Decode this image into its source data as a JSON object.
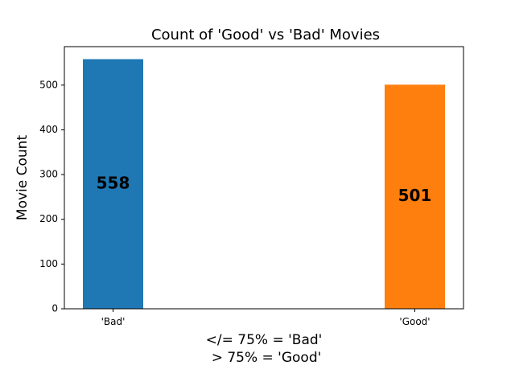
{
  "chart_data": {
    "type": "bar",
    "title": "Count of 'Good' vs 'Bad' Movies",
    "xlabel_lines": [
      "</= 75% = 'Bad'",
      "> 75% = 'Good'"
    ],
    "ylabel": "Movie Count",
    "categories": [
      "'Bad'",
      "'Good'"
    ],
    "values": [
      558,
      501
    ],
    "value_labels": [
      "558",
      "501"
    ],
    "colors": [
      "#1f77b4",
      "#ff7f0e"
    ],
    "ylim": [
      0,
      586
    ],
    "yticks": [
      0,
      100,
      200,
      300,
      400,
      500
    ],
    "grid": false,
    "legend": "none"
  }
}
